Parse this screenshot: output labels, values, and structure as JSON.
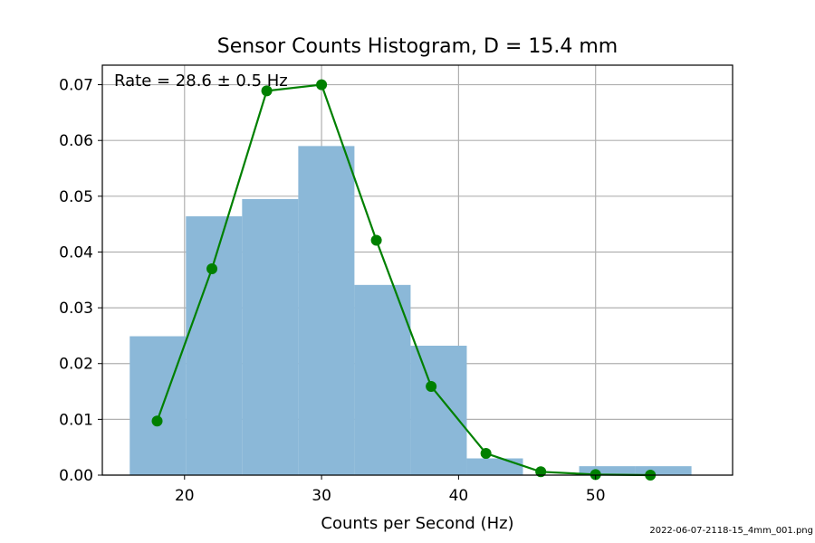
{
  "chart_data": {
    "type": "bar",
    "title": "Sensor Counts Histogram, D = 15.4 mm",
    "xlabel": "Counts per Second (Hz)",
    "ylabel": "",
    "xlim": [
      14,
      60
    ],
    "ylim": [
      0,
      0.0735
    ],
    "xticks": [
      20,
      30,
      40,
      50
    ],
    "yticks": [
      0.0,
      0.01,
      0.02,
      0.03,
      0.04,
      0.05,
      0.06,
      0.07
    ],
    "grid": true,
    "annotation": "Rate = 28.6 ± 0.5 Hz",
    "bar_color": "#8bb8d8",
    "bins": [
      {
        "x0": 16.0,
        "x1": 20.1,
        "value": 0.0249
      },
      {
        "x0": 20.1,
        "x1": 24.2,
        "value": 0.0464
      },
      {
        "x0": 24.2,
        "x1": 28.3,
        "value": 0.0495
      },
      {
        "x0": 28.3,
        "x1": 32.4,
        "value": 0.059
      },
      {
        "x0": 32.4,
        "x1": 36.5,
        "value": 0.0341
      },
      {
        "x0": 36.5,
        "x1": 40.6,
        "value": 0.0232
      },
      {
        "x0": 40.6,
        "x1": 44.7,
        "value": 0.003
      },
      {
        "x0": 44.7,
        "x1": 48.8,
        "value": 0.0
      },
      {
        "x0": 48.8,
        "x1": 52.9,
        "value": 0.0016
      },
      {
        "x0": 52.9,
        "x1": 57.0,
        "value": 0.0016
      }
    ],
    "series": [
      {
        "color": "#008000",
        "x": [
          18,
          22,
          26,
          30,
          34,
          38,
          42,
          46,
          50,
          54
        ],
        "y": [
          0.0097,
          0.037,
          0.0689,
          0.07,
          0.0421,
          0.0159,
          0.0039,
          0.0006,
          0.0001,
          0.0
        ]
      }
    ]
  },
  "footer": {
    "filename": "2022-06-07-2118-15_4mm_001.png"
  }
}
